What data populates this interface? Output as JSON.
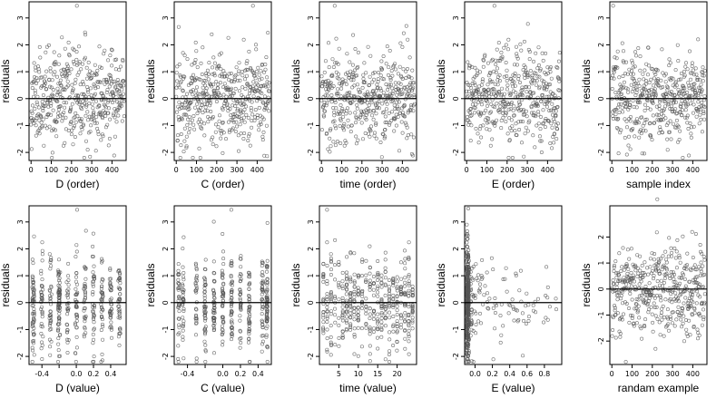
{
  "chart_data": [
    {
      "type": "scatter",
      "xlabel": "D (order)",
      "ylabel": "residuals",
      "xlim": [
        -10,
        470
      ],
      "ylim": [
        -2.3,
        3.6
      ],
      "xticks": [
        0,
        100,
        200,
        300,
        400
      ],
      "yticks": [
        -2,
        -1,
        0,
        1,
        2,
        3
      ],
      "xtick_labels": [
        "0",
        "100",
        "200",
        "300",
        "400"
      ],
      "ytick_labels": [
        "-2",
        "-1",
        "0",
        "1",
        "2",
        "3"
      ],
      "reference_line_y": 0,
      "x": [],
      "y": [],
      "gen": {
        "mode": "index",
        "n": 460,
        "seed": 11,
        "xmin": 0,
        "xmax": 460
      }
    },
    {
      "type": "scatter",
      "xlabel": "C (order)",
      "ylabel": "residuals",
      "xlim": [
        -10,
        470
      ],
      "ylim": [
        -2.3,
        3.6
      ],
      "xticks": [
        0,
        100,
        200,
        300,
        400
      ],
      "yticks": [
        -2,
        -1,
        0,
        1,
        2,
        3
      ],
      "xtick_labels": [
        "0",
        "100",
        "200",
        "300",
        "400"
      ],
      "ytick_labels": [
        "-2",
        "-1",
        "0",
        "1",
        "2",
        "3"
      ],
      "reference_line_y": 0,
      "x": [],
      "y": [],
      "gen": {
        "mode": "index",
        "n": 460,
        "seed": 22,
        "xmin": 0,
        "xmax": 460
      }
    },
    {
      "type": "scatter",
      "xlabel": "time (order)",
      "ylabel": "residuals",
      "xlim": [
        -10,
        470
      ],
      "ylim": [
        -2.3,
        3.6
      ],
      "xticks": [
        0,
        100,
        200,
        300,
        400
      ],
      "yticks": [
        -2,
        -1,
        0,
        1,
        2,
        3
      ],
      "xtick_labels": [
        "0",
        "100",
        "200",
        "300",
        "400"
      ],
      "ytick_labels": [
        "-2",
        "-1",
        "0",
        "1",
        "2",
        "3"
      ],
      "reference_line_y": 0,
      "x": [],
      "y": [],
      "gen": {
        "mode": "index",
        "n": 460,
        "seed": 33,
        "xmin": 0,
        "xmax": 460
      }
    },
    {
      "type": "scatter",
      "xlabel": "E (order)",
      "ylabel": "residuals",
      "xlim": [
        -10,
        470
      ],
      "ylim": [
        -2.3,
        3.6
      ],
      "xticks": [
        0,
        100,
        200,
        300,
        400
      ],
      "yticks": [
        -2,
        -1,
        0,
        1,
        2,
        3
      ],
      "xtick_labels": [
        "0",
        "100",
        "200",
        "300",
        "400"
      ],
      "ytick_labels": [
        "-2",
        "-1",
        "0",
        "1",
        "2",
        "3"
      ],
      "reference_line_y": 0,
      "x": [],
      "y": [],
      "gen": {
        "mode": "index",
        "n": 460,
        "seed": 44,
        "xmin": 0,
        "xmax": 460
      }
    },
    {
      "type": "scatter",
      "xlabel": "sample index",
      "ylabel": "residuals",
      "xlim": [
        -10,
        470
      ],
      "ylim": [
        -2.3,
        3.6
      ],
      "xticks": [
        0,
        100,
        200,
        300,
        400
      ],
      "yticks": [
        -2,
        -1,
        0,
        1,
        2,
        3
      ],
      "xtick_labels": [
        "0",
        "100",
        "200",
        "300",
        "400"
      ],
      "ytick_labels": [
        "-2",
        "-1",
        "0",
        "1",
        "2",
        "3"
      ],
      "reference_line_y": 0,
      "x": [],
      "y": [],
      "gen": {
        "mode": "index",
        "n": 460,
        "seed": 55,
        "xmin": 0,
        "xmax": 460
      }
    },
    {
      "type": "scatter",
      "xlabel": "D (value)",
      "ylabel": "residuals",
      "xlim": [
        -0.55,
        0.58
      ],
      "ylim": [
        -2.3,
        3.6
      ],
      "xticks": [
        -0.4,
        -0.2,
        0,
        0.2,
        0.4
      ],
      "yticks": [
        -2,
        -1,
        0,
        1,
        2,
        3
      ],
      "xtick_labels": [
        "-0.4",
        "",
        "0.0",
        "0.2",
        "0.4"
      ],
      "ytick_labels": [
        "-2",
        "-1",
        "0",
        "1",
        "2",
        "3"
      ],
      "reference_line_y": 0,
      "x": [],
      "y": [],
      "gen": {
        "mode": "discrete",
        "n": 460,
        "seed": 66,
        "levels": [
          -0.5,
          -0.4,
          -0.3,
          -0.2,
          -0.1,
          0,
          0.1,
          0.2,
          0.3,
          0.4,
          0.5
        ],
        "jitter": 0.012
      }
    },
    {
      "type": "scatter",
      "xlabel": "C (value)",
      "ylabel": "residuals",
      "xlim": [
        -0.55,
        0.55
      ],
      "ylim": [
        -2.3,
        3.6
      ],
      "xticks": [
        -0.4,
        -0.2,
        0,
        0.2,
        0.4
      ],
      "yticks": [
        -2,
        -1,
        0,
        1,
        2,
        3
      ],
      "xtick_labels": [
        "-0.4",
        "",
        "0.0",
        "0.2",
        "0.4"
      ],
      "ytick_labels": [
        "-2",
        "-1",
        "0",
        "1",
        "2",
        "3"
      ],
      "reference_line_y": 0,
      "x": [],
      "y": [],
      "gen": {
        "mode": "discrete",
        "n": 460,
        "seed": 77,
        "levels": [
          -0.5,
          -0.45,
          -0.3,
          -0.2,
          -0.1,
          0,
          0.1,
          0.2,
          0.3,
          0.45,
          0.5
        ],
        "jitter": 0.008
      }
    },
    {
      "type": "scatter",
      "xlabel": "time (value)",
      "ylabel": "residuals",
      "xlim": [
        0,
        25
      ],
      "ylim": [
        -2.3,
        3.6
      ],
      "xticks": [
        5,
        10,
        15,
        20
      ],
      "yticks": [
        -2,
        -1,
        0,
        1,
        2,
        3
      ],
      "xtick_labels": [
        "5",
        "10",
        "15",
        "20"
      ],
      "ytick_labels": [
        "-2",
        "-1",
        "0",
        "1",
        "2",
        "3"
      ],
      "reference_line_y": 0,
      "x": [],
      "y": [],
      "gen": {
        "mode": "discrete",
        "n": 460,
        "seed": 88,
        "levels": [
          1,
          2,
          3,
          4,
          5,
          6,
          7,
          8,
          9,
          10,
          11,
          12,
          13,
          14,
          15,
          16,
          17,
          18,
          19,
          20,
          21,
          22,
          23,
          24
        ],
        "jitter": 0.05
      }
    },
    {
      "type": "scatter",
      "xlabel": "E (value)",
      "ylabel": "residuals",
      "xlim": [
        -0.12,
        1.0
      ],
      "ylim": [
        -2.3,
        3.6
      ],
      "xticks": [
        0.0,
        0.2,
        0.4,
        0.6,
        0.8
      ],
      "yticks": [
        -2,
        -1,
        0,
        1,
        2,
        3
      ],
      "xtick_labels": [
        "0.0",
        "0.2",
        "0.4",
        "0.6",
        "0.8"
      ],
      "ytick_labels": [
        "-2",
        "-1",
        "0",
        "1",
        "2",
        "3"
      ],
      "reference_line_y": 0,
      "x": [],
      "y": [],
      "gen": {
        "mode": "skewed",
        "n": 460,
        "seed": 99
      }
    },
    {
      "type": "scatter",
      "xlabel": "randam example",
      "ylabel": "residuals",
      "xlim": [
        -10,
        470
      ],
      "ylim": [
        -2.9,
        3.2
      ],
      "xticks": [
        0,
        100,
        200,
        300,
        400
      ],
      "yticks": [
        -2,
        -1,
        0,
        1,
        2
      ],
      "xtick_labels": [
        "0",
        "100",
        "200",
        "300",
        "400"
      ],
      "ytick_labels": [
        "-2",
        "-1",
        "0",
        "1",
        "2"
      ],
      "reference_line_y": 0,
      "x": [],
      "y": [],
      "gen": {
        "mode": "index",
        "n": 460,
        "seed": 111,
        "xmin": 0,
        "xmax": 460
      }
    }
  ]
}
